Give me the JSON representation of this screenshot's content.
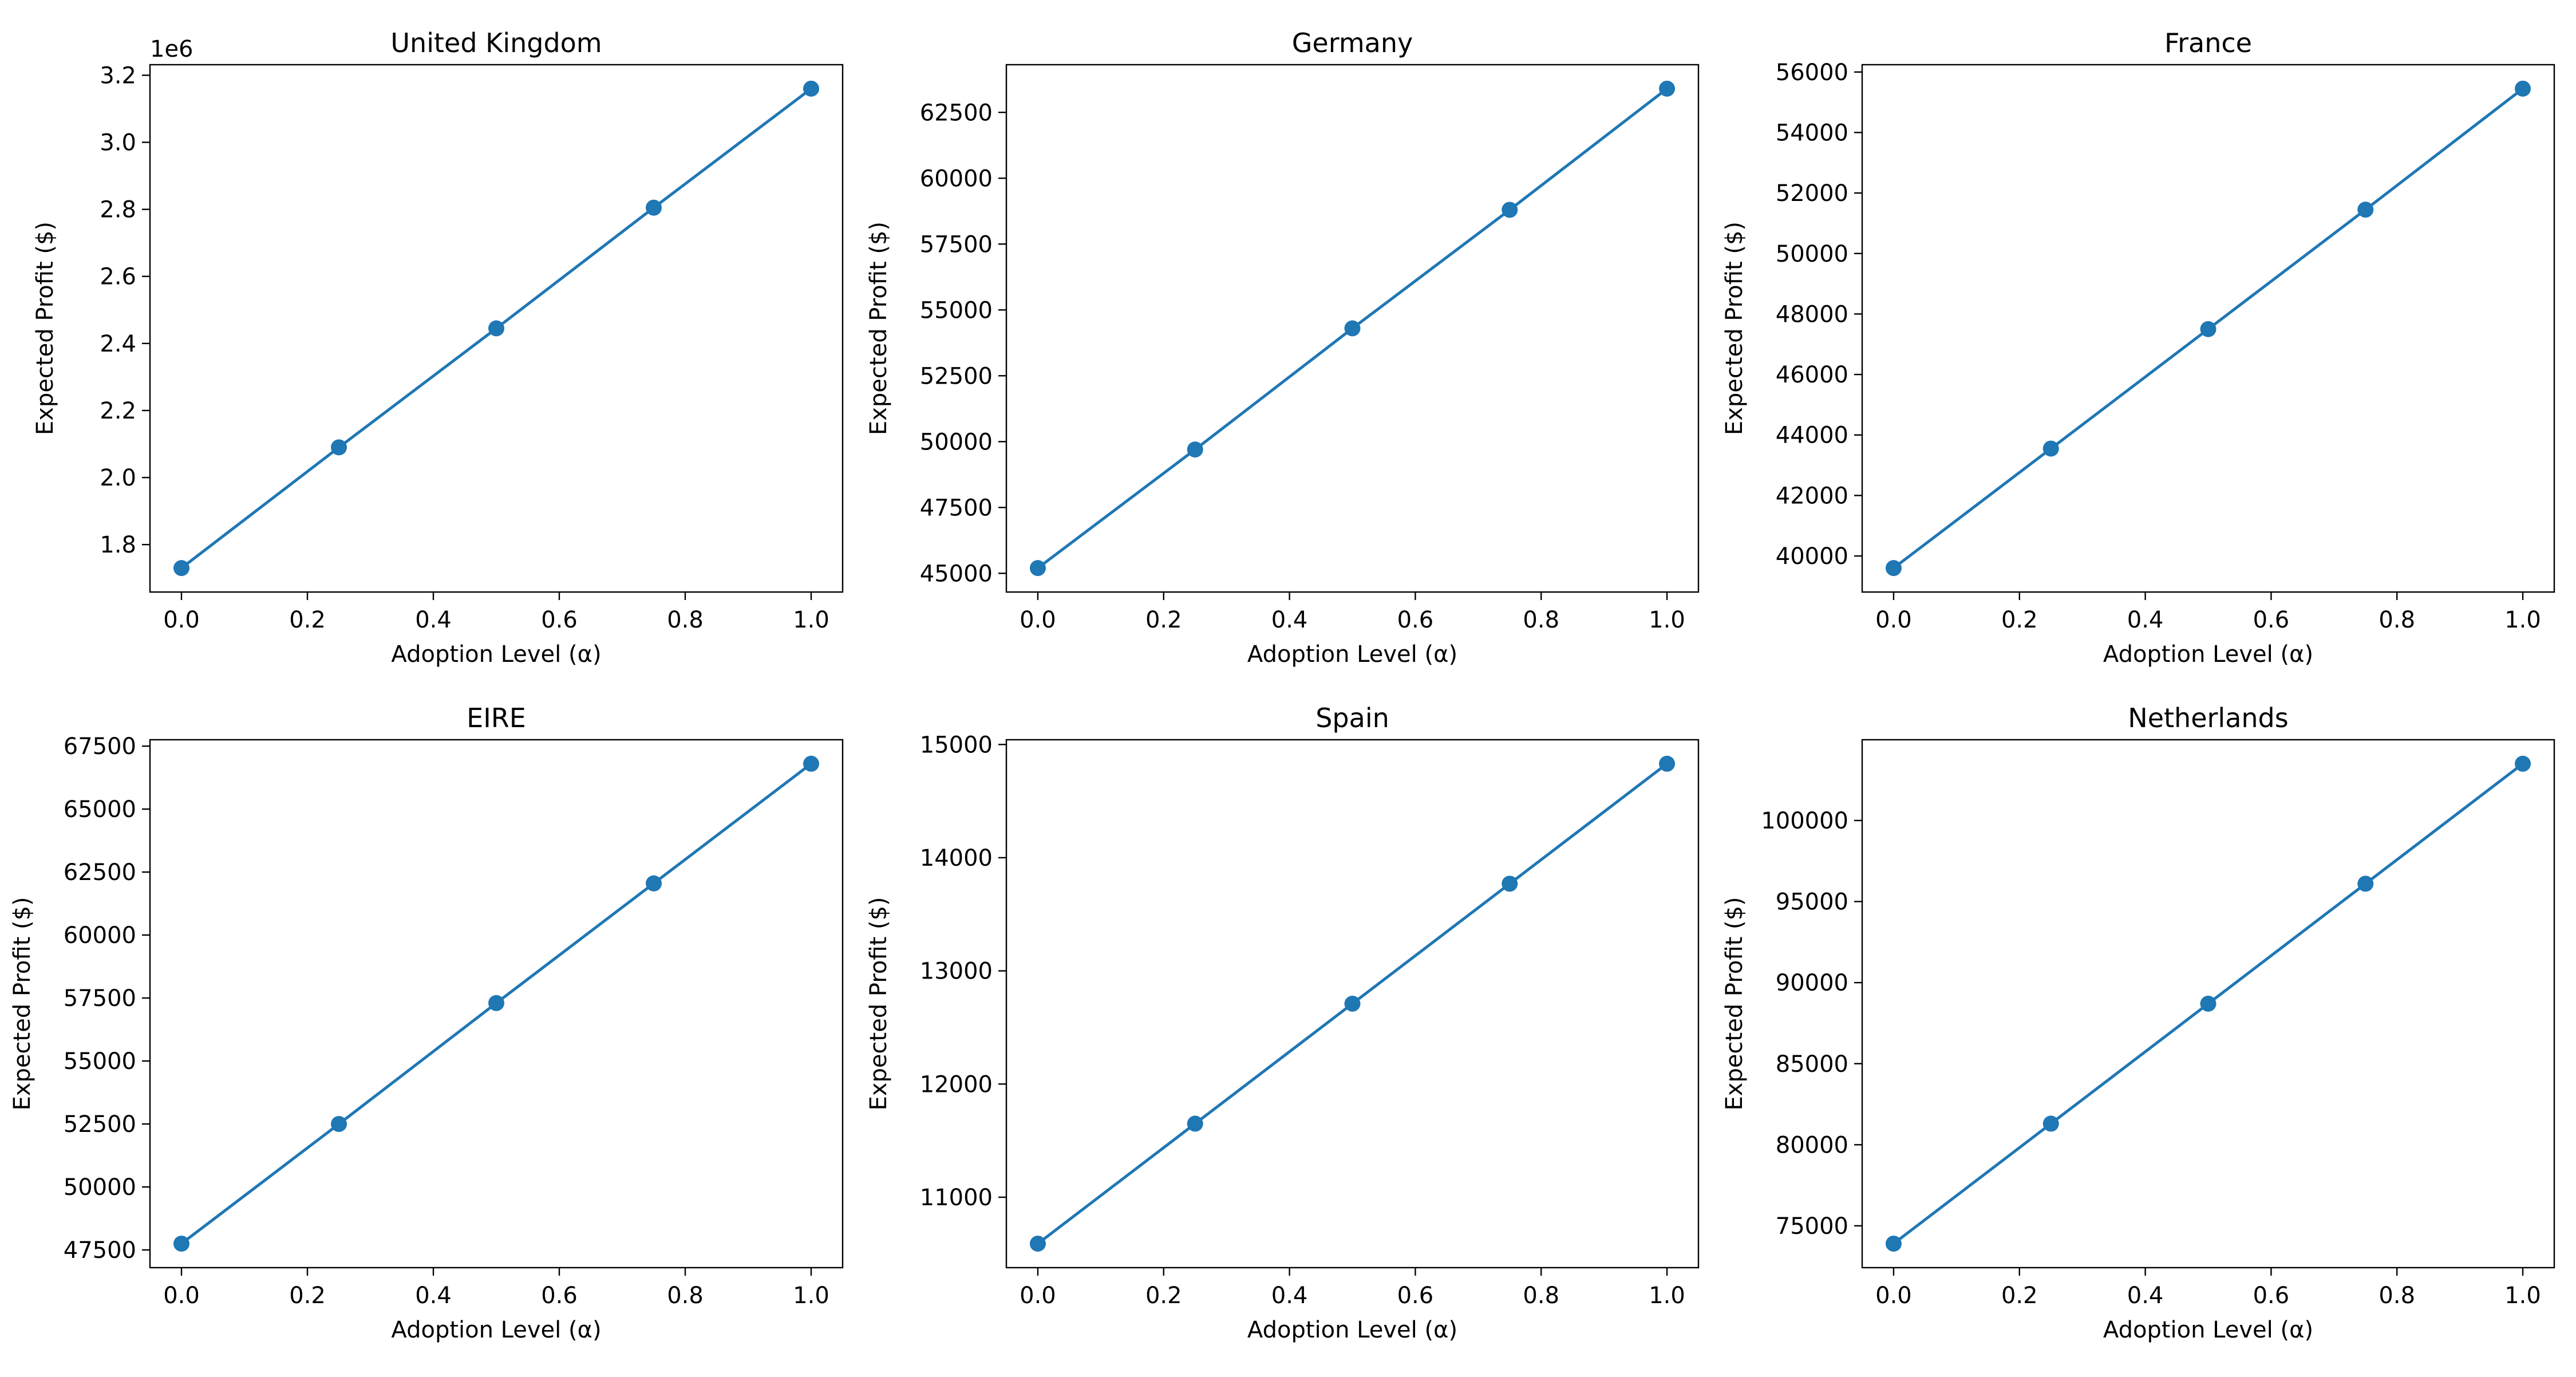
{
  "figure": {
    "series_color": "#1f77b4"
  },
  "chart_data": [
    {
      "type": "line",
      "title": "United Kingdom",
      "xlabel": "Adoption Level (α)",
      "ylabel": "Expected Profit ($)",
      "x": [
        0.0,
        0.25,
        0.5,
        0.75,
        1.0
      ],
      "y": [
        1730000,
        2090000,
        2445000,
        2805000,
        3160000
      ],
      "xlim": [
        -0.05,
        1.05
      ],
      "ylim": [
        1658500,
        3231500
      ],
      "xticks": [
        0.0,
        0.2,
        0.4,
        0.6,
        0.8,
        1.0
      ],
      "xtick_labels": [
        "0.0",
        "0.2",
        "0.4",
        "0.6",
        "0.8",
        "1.0"
      ],
      "yticks": [
        1800000,
        2000000,
        2200000,
        2400000,
        2600000,
        2800000,
        3000000,
        3200000
      ],
      "ytick_labels": [
        "1.8",
        "2.0",
        "2.2",
        "2.4",
        "2.6",
        "2.8",
        "3.0",
        "3.2"
      ],
      "y_offset_label": "1e6",
      "grid": false,
      "marker": "circle"
    },
    {
      "type": "line",
      "title": "Germany",
      "xlabel": "Adoption Level (α)",
      "ylabel": "Expected Profit ($)",
      "x": [
        0.0,
        0.25,
        0.5,
        0.75,
        1.0
      ],
      "y": [
        45200,
        49700,
        54300,
        58800,
        63400
      ],
      "xlim": [
        -0.05,
        1.05
      ],
      "ylim": [
        44290,
        64310
      ],
      "xticks": [
        0.0,
        0.2,
        0.4,
        0.6,
        0.8,
        1.0
      ],
      "xtick_labels": [
        "0.0",
        "0.2",
        "0.4",
        "0.6",
        "0.8",
        "1.0"
      ],
      "yticks": [
        45000,
        47500,
        50000,
        52500,
        55000,
        57500,
        60000,
        62500
      ],
      "ytick_labels": [
        "45000",
        "47500",
        "50000",
        "52500",
        "55000",
        "57500",
        "60000",
        "62500"
      ],
      "grid": false,
      "marker": "circle"
    },
    {
      "type": "line",
      "title": "France",
      "xlabel": "Adoption Level (α)",
      "ylabel": "Expected Profit ($)",
      "x": [
        0.0,
        0.25,
        0.5,
        0.75,
        1.0
      ],
      "y": [
        39600,
        43550,
        47500,
        51450,
        55450
      ],
      "xlim": [
        -0.05,
        1.05
      ],
      "ylim": [
        38808,
        56242
      ],
      "xticks": [
        0.0,
        0.2,
        0.4,
        0.6,
        0.8,
        1.0
      ],
      "xtick_labels": [
        "0.0",
        "0.2",
        "0.4",
        "0.6",
        "0.8",
        "1.0"
      ],
      "yticks": [
        40000,
        42000,
        44000,
        46000,
        48000,
        50000,
        52000,
        54000,
        56000
      ],
      "ytick_labels": [
        "40000",
        "42000",
        "44000",
        "46000",
        "48000",
        "50000",
        "52000",
        "54000",
        "56000"
      ],
      "grid": false,
      "marker": "circle"
    },
    {
      "type": "line",
      "title": "EIRE",
      "xlabel": "Adoption Level (α)",
      "ylabel": "Expected Profit ($)",
      "x": [
        0.0,
        0.25,
        0.5,
        0.75,
        1.0
      ],
      "y": [
        47750,
        52500,
        57300,
        62050,
        66800
      ],
      "xlim": [
        -0.05,
        1.05
      ],
      "ylim": [
        46797,
        67753
      ],
      "xticks": [
        0.0,
        0.2,
        0.4,
        0.6,
        0.8,
        1.0
      ],
      "xtick_labels": [
        "0.0",
        "0.2",
        "0.4",
        "0.6",
        "0.8",
        "1.0"
      ],
      "yticks": [
        47500,
        50000,
        52500,
        55000,
        57500,
        60000,
        62500,
        65000,
        67500
      ],
      "ytick_labels": [
        "47500",
        "50000",
        "52500",
        "55000",
        "57500",
        "60000",
        "62500",
        "65000",
        "67500"
      ],
      "grid": false,
      "marker": "circle"
    },
    {
      "type": "line",
      "title": "Spain",
      "xlabel": "Adoption Level (α)",
      "ylabel": "Expected Profit ($)",
      "x": [
        0.0,
        0.25,
        0.5,
        0.75,
        1.0
      ],
      "y": [
        10590,
        11650,
        12710,
        13770,
        14830
      ],
      "xlim": [
        -0.05,
        1.05
      ],
      "ylim": [
        10378,
        15042
      ],
      "xticks": [
        0.0,
        0.2,
        0.4,
        0.6,
        0.8,
        1.0
      ],
      "xtick_labels": [
        "0.0",
        "0.2",
        "0.4",
        "0.6",
        "0.8",
        "1.0"
      ],
      "yticks": [
        11000,
        12000,
        13000,
        14000,
        15000
      ],
      "ytick_labels": [
        "11000",
        "12000",
        "13000",
        "14000",
        "15000"
      ],
      "grid": false,
      "marker": "circle"
    },
    {
      "type": "line",
      "title": "Netherlands",
      "xlabel": "Adoption Level (α)",
      "ylabel": "Expected Profit ($)",
      "x": [
        0.0,
        0.25,
        0.5,
        0.75,
        1.0
      ],
      "y": [
        73900,
        81300,
        88700,
        96100,
        103500
      ],
      "xlim": [
        -0.05,
        1.05
      ],
      "ylim": [
        72420,
        104980
      ],
      "xticks": [
        0.0,
        0.2,
        0.4,
        0.6,
        0.8,
        1.0
      ],
      "xtick_labels": [
        "0.0",
        "0.2",
        "0.4",
        "0.6",
        "0.8",
        "1.0"
      ],
      "yticks": [
        75000,
        80000,
        85000,
        90000,
        95000,
        100000
      ],
      "ytick_labels": [
        "75000",
        "80000",
        "85000",
        "90000",
        "95000",
        "100000"
      ],
      "grid": false,
      "marker": "circle"
    }
  ]
}
